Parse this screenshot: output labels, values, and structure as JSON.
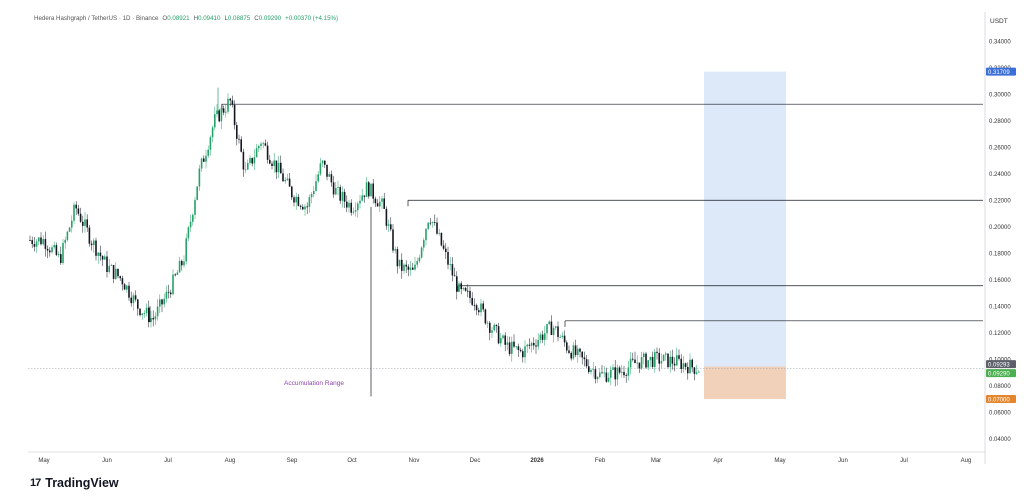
{
  "header": {
    "symbol": "Hedera Hashgraph / TetherUS · 1D · Binance",
    "ohlc": [
      {
        "label": "O",
        "value": "0.08921"
      },
      {
        "label": "H",
        "value": "0.09410"
      },
      {
        "label": "L",
        "value": "0.08875"
      },
      {
        "label": "C",
        "value": "0.09290"
      },
      {
        "label": "",
        "value": "+0.00370 (+4.15%)"
      }
    ]
  },
  "brand": {
    "logo_text": "17",
    "name": "TradingView"
  },
  "colors": {
    "up": "#26a269",
    "down": "#131722",
    "target_zone": "#dbe7f8",
    "accumulation": "#e9f7f5",
    "orange": "#f7c9a4",
    "price_tag": "#4caf50",
    "target_tag": "#3a6fd8",
    "support_tag": "#e5862d"
  },
  "chart_data": {
    "type": "candlestick",
    "currency": "USDT",
    "ylim": [
      0.03,
      0.35
    ],
    "y_ticks": [
      "0.34000",
      "0.32000",
      "0.30000",
      "0.28000",
      "0.26000",
      "0.24000",
      "0.22000",
      "0.20000",
      "0.18000",
      "0.16000",
      "0.14000",
      "0.12000",
      "0.10000",
      "0.08000",
      "0.06000",
      "0.04000"
    ],
    "x_ticks": [
      "May",
      "Jun",
      "Jul",
      "Aug",
      "Sep",
      "Oct",
      "Nov",
      "Dec",
      "2026",
      "Feb",
      "Mar",
      "Apr",
      "May",
      "Jun",
      "Jul",
      "Aug"
    ],
    "bold_x_tick": "2026",
    "price_path": [
      [
        "May",
        0.19
      ],
      [
        "May",
        0.175
      ],
      [
        "May",
        0.215
      ],
      [
        "May",
        0.19
      ],
      [
        "Jun",
        0.17
      ],
      [
        "Jun",
        0.16
      ],
      [
        "Jun",
        0.14
      ],
      [
        "Jun",
        0.13
      ],
      [
        "Jul",
        0.15
      ],
      [
        "Jul",
        0.175
      ],
      [
        "Jul",
        0.24
      ],
      [
        "Jul",
        0.28
      ],
      [
        "Aug",
        0.295
      ],
      [
        "Aug",
        0.24
      ],
      [
        "Aug",
        0.265
      ],
      [
        "Aug",
        0.245
      ],
      [
        "Sep",
        0.225
      ],
      [
        "Sep",
        0.215
      ],
      [
        "Sep",
        0.248
      ],
      [
        "Sep",
        0.225
      ],
      [
        "Oct",
        0.215
      ],
      [
        "Oct",
        0.23
      ],
      [
        "Oct",
        0.215
      ],
      [
        "Oct",
        0.17
      ],
      [
        "Nov",
        0.165
      ],
      [
        "Nov",
        0.21
      ],
      [
        "Nov",
        0.18
      ],
      [
        "Nov",
        0.15
      ],
      [
        "Dec",
        0.145
      ],
      [
        "Dec",
        0.125
      ],
      [
        "Dec",
        0.11
      ],
      [
        "Dec",
        0.105
      ],
      [
        "2026",
        0.115
      ],
      [
        "2026",
        0.125
      ],
      [
        "2026",
        0.108
      ],
      [
        "2026",
        0.098
      ],
      [
        "Feb",
        0.088
      ],
      [
        "Feb",
        0.09
      ],
      [
        "Feb",
        0.098
      ],
      [
        "Mar",
        0.1
      ],
      [
        "Mar",
        0.098
      ],
      [
        "Mar",
        0.093
      ]
    ],
    "wicks": [
      {
        "date": "Oct",
        "low": 0.072
      },
      {
        "date": "Jun",
        "low": 0.128
      },
      {
        "date": "Jul",
        "high": 0.305
      }
    ],
    "resistance_levels": [
      {
        "price": 0.2925,
        "from": "Aug"
      },
      {
        "price": 0.22,
        "from": "Nov"
      },
      {
        "price": 0.1555,
        "from": "Nov"
      },
      {
        "price": 0.129,
        "from": "2026"
      }
    ],
    "target_zone": {
      "from": "Mar",
      "to": "Apr",
      "top": 0.31709,
      "bottom": 0.07
    },
    "accumulation_range": {
      "label": "Accumulation Range",
      "from": "Feb",
      "to": "May",
      "top": 0.0945,
      "bottom": 0.07
    },
    "price_labels": [
      {
        "text": "0.31709",
        "price": 0.31709,
        "role": "target"
      },
      {
        "text": "0.09293",
        "price": 0.09293,
        "role": "current-dark"
      },
      {
        "text": "0.09290",
        "price": 0.0929,
        "role": "current"
      },
      {
        "text": "0.07000",
        "price": 0.07,
        "role": "support"
      }
    ]
  }
}
